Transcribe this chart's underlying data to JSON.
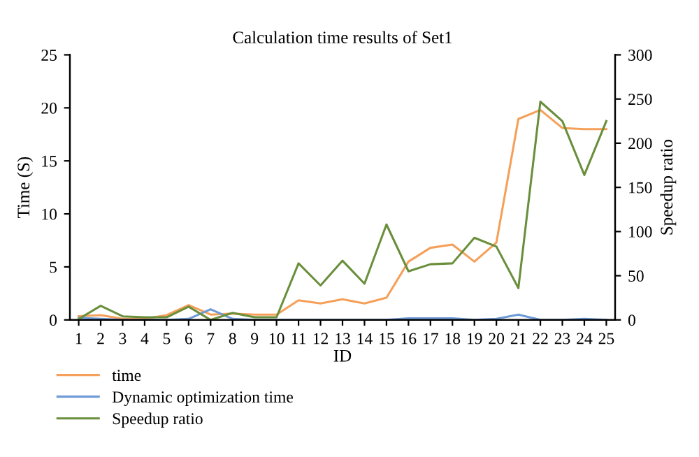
{
  "chart_data": {
    "type": "line",
    "title": "Calculation time results of Set1",
    "xlabel": "ID",
    "ylabel": "Time (S)",
    "y2label": "Speedup ratio",
    "categories": [
      "1",
      "2",
      "3",
      "4",
      "5",
      "6",
      "7",
      "8",
      "9",
      "10",
      "11",
      "12",
      "13",
      "14",
      "15",
      "16",
      "17",
      "18",
      "19",
      "20",
      "21",
      "22",
      "23",
      "24",
      "25"
    ],
    "series": [
      {
        "name": "time",
        "color": "#f5a05a",
        "values": [
          0.35,
          0.45,
          0.1,
          0.1,
          0.45,
          1.4,
          0.5,
          0.6,
          0.5,
          0.5,
          1.85,
          1.55,
          1.95,
          1.55,
          2.1,
          5.5,
          6.8,
          7.1,
          5.5,
          7.3,
          18.95,
          19.8,
          18.1,
          18.0,
          18.0
        ]
      },
      {
        "name": "Dynamic optimization time",
        "color": "#6e9bd8",
        "values": [
          0.2,
          0.1,
          0,
          0,
          0,
          0.1,
          1.0,
          0.1,
          0,
          0,
          0,
          0,
          0,
          0,
          0,
          0.15,
          0.15,
          0.15,
          0,
          0.1,
          0.5,
          0,
          0,
          0.1,
          0
        ]
      },
      {
        "name": "Speedup ratio",
        "color": "#6a8f3c",
        "axis": "y2",
        "values": [
          1,
          16,
          4,
          3,
          3,
          15,
          0,
          8,
          3,
          3,
          64,
          39,
          67,
          41,
          108,
          55,
          63,
          64,
          93,
          83,
          36,
          247,
          225,
          164,
          225
        ]
      }
    ],
    "ylim": [
      0,
      25
    ],
    "yticks": [
      0,
      5,
      10,
      15,
      20,
      25
    ],
    "y2lim": [
      0,
      300
    ],
    "y2ticks": [
      0,
      50,
      100,
      150,
      200,
      250,
      300
    ],
    "grid": false,
    "legend": "bottom left",
    "marker": "none",
    "line_style": "solid"
  }
}
